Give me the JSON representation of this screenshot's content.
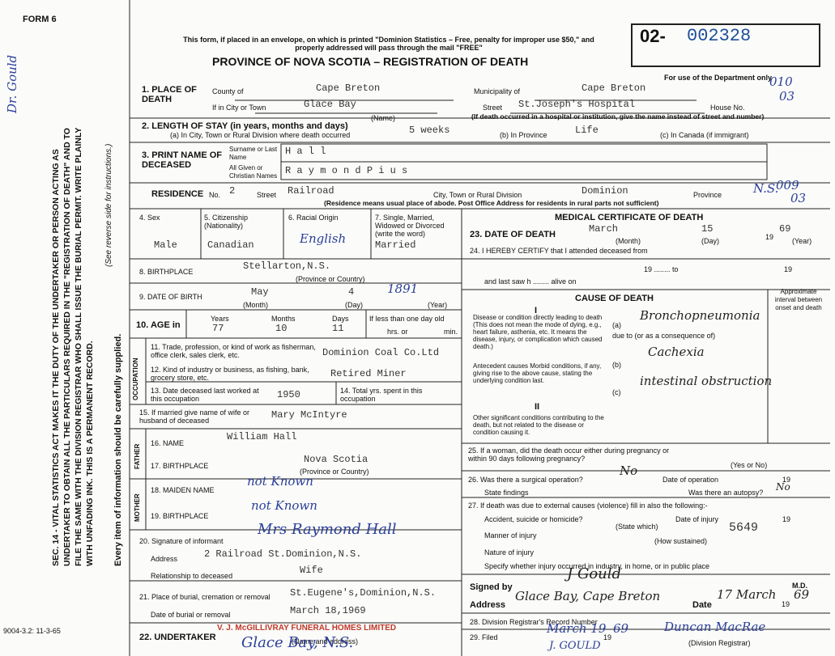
{
  "form_number": "FORM 6",
  "form_code": "9004-3.2: 11-3-65",
  "margin": {
    "handwritten_name": "Dr. Gould",
    "instructions": "SEC. 14 - VITAL STATISTICS ACT MAKES IT THE DUTY OF THE UNDERTAKER OR PERSON ACTING AS UNDERTAKER TO OBTAIN ALL THE PARTICULARS REQUIRED IN THE \"REGISTRATION OF DEATH\" AND TO FILE THE SAME WITH THE DIVISION REGISTRAR WHO SHALL ISSUE THE BURIAL PERMIT. WRITE PLAINLY WITH UNFADING INK. THIS IS A PERMANENT RECORD.",
    "reverse_note": "(See reverse side for instructions.)",
    "every_item": "Every item of information should be carefully supplied."
  },
  "header": {
    "notice": "This form, if placed in an envelope, on which is printed \"Dominion Statistics – Free, penalty for improper use $50,\" and properly addressed will pass through the mail \"FREE\"",
    "title": "PROVINCE OF NOVA SCOTIA – REGISTRATION OF DEATH",
    "registration_prefix": "02-",
    "registration_number": "002328",
    "department_note": "For use of the Department only",
    "department_codes": [
      "010",
      "03",
      "009",
      "03"
    ]
  },
  "place_of_death": {
    "label": "1. PLACE OF DEATH",
    "county_label": "County of",
    "county": "Cape Breton",
    "municipality_label": "Municipality of",
    "municipality": "Cape Breton",
    "city_label": "If in City or Town",
    "city": "Glace Bay",
    "street_label": "Street",
    "street": "St.Joseph's Hospital",
    "house_label": "House No.",
    "name_note": "(Name)",
    "hospital_note": "(If death occurred in a hospital or institution, give the name instead of street and number)"
  },
  "length_of_stay": {
    "label": "2. LENGTH OF STAY (in years, months and days)",
    "city_label": "(a) In City, Town or Rural Division where death occurred",
    "city": "5 weeks",
    "province_label": "(b) In Province",
    "province": "Life",
    "canada_label": "(c) In Canada (if immigrant)"
  },
  "name": {
    "label": "3. PRINT NAME OF DECEASED",
    "surname_label": "Surname or Last Name",
    "surname": "H a l l",
    "given_label": "All Given or Christian Names",
    "given": "R a y m o n d  P i u s"
  },
  "residence": {
    "label": "RESIDENCE",
    "no_label": "No.",
    "no": "2",
    "street_label": "Street",
    "street": "Railroad",
    "city_label": "City, Town or Rural Division",
    "city": "Dominion",
    "province_label": "Province",
    "province": "N.S.",
    "note": "(Residence means usual place of abode. Post Office Address for residents in rural parts not sufficient)"
  },
  "personal": {
    "sex_label": "4. Sex",
    "sex": "Male",
    "citizenship_label": "5. Citizenship (Nationality)",
    "citizenship": "Canadian",
    "racial_label": "6. Racial Origin",
    "racial": "English",
    "marital_label": "7. Single, Married, Widowed or Divorced (write the word)",
    "marital": "Married",
    "birthplace_label": "8. BIRTHPLACE",
    "birthplace": "Stellarton,N.S.",
    "birthplace_note": "(Province or Country)",
    "dob_label": "9. DATE OF BIRTH",
    "dob_month": "May",
    "dob_day": "4",
    "dob_year": "1891",
    "month_note": "(Month)",
    "day_note": "(Day)",
    "year_note": "(Year)",
    "age_label": "10. AGE in",
    "years_label": "Years",
    "years": "77",
    "months_label": "Months",
    "months": "10",
    "days_label": "Days",
    "days": "11",
    "less_day_label": "If less than one day old",
    "hrs_label": "hrs. or",
    "min_label": "min."
  },
  "occupation": {
    "side_label": "OCCUPATION",
    "trade_label": "11. Trade, profession, or kind of work as fisherman, office clerk, sales clerk, etc.",
    "trade": "Dominion Coal Co.Ltd",
    "industry_label": "12. Kind of industry or business, as fishing, bank, grocery store, etc.",
    "industry": "Retired Miner",
    "last_worked_label": "13. Date deceased last worked at this occupation",
    "last_worked": "1950",
    "total_label": "14. Total yrs. spent in this occupation"
  },
  "spouse": {
    "label": "15. If married give name of wife or husband of deceased",
    "name": "Mary McIntyre"
  },
  "father": {
    "side_label": "FATHER",
    "name_label": "16. NAME",
    "name": "William Hall",
    "birthplace_label": "17. BIRTHPLACE",
    "birthplace": "Nova Scotia",
    "birthplace_note": "(Province or Country)"
  },
  "mother": {
    "side_label": "MOTHER",
    "maiden_label": "18. MAIDEN NAME",
    "maiden": "not Known",
    "birthplace_label": "19. BIRTHPLACE",
    "birthplace": "not Known"
  },
  "informant": {
    "signature_label": "20. Signature of informant",
    "signature": "Mrs Raymond Hall",
    "address_label": "Address",
    "address": "2 Railroad St.Dominion,N.S.",
    "relationship_label": "Relationship to deceased",
    "relationship": "Wife"
  },
  "burial": {
    "place_label": "21. Place of burial, cremation or removal",
    "place": "St.Eugene's,Dominion,N.S.",
    "date_label": "Date of burial or removal",
    "date": "March 18,1969"
  },
  "undertaker": {
    "label": "22. UNDERTAKER",
    "stamp": "V. J. McGILLIVRAY FUNERAL HOMES LIMITED",
    "note": "(Name and address)",
    "address": "Glace Bay, N.S."
  },
  "medical": {
    "title": "MEDICAL CERTIFICATE OF DEATH",
    "death_label": "23. DATE OF DEATH",
    "death_month": "March",
    "death_day": "15",
    "death_century": "19",
    "death_year": "69",
    "month_note": "(Month)",
    "day_note": "(Day)",
    "year_note": "(Year)",
    "certify": "24. I HEREBY CERTIFY that I attended deceased from",
    "nineteen_to": "19 ........ to",
    "nineteen": "19",
    "last_saw": "and last saw h ........ alive on",
    "cause_title": "CAUSE OF DEATH",
    "interval": "Approximate interval between onset and death",
    "part_one": "I",
    "direct": "Disease or condition directly leading to death (This does not mean the mode of dying, e.g., heart failure, asthenia, etc. It means the disease, injury, or complication which caused death.)",
    "a": "(a)",
    "a_cause": "Bronchopneumonia",
    "due_to": "due to (or as a consequence of)",
    "antecedent": "Antecedent causes Morbid conditions, if any, giving rise to the above cause, stating the underlying condition last.",
    "b": "(b)",
    "b_cause": "Cachexia",
    "c": "(c)",
    "c_cause": "intestinal obstruction",
    "part_two": "II",
    "other": "Other significant conditions contributing to the death, but not related to the disease or condition causing it."
  },
  "pregnancy": {
    "label": "25. If a woman, did the death occur either during pregnancy or within 90 days following pregnancy?",
    "note": "(Yes or No)"
  },
  "operation": {
    "label": "26. Was there a surgical operation?",
    "answer": "No",
    "date_label": "Date of operation",
    "nineteen": "19",
    "findings_label": "State findings",
    "autopsy_label": "Was there an autopsy?",
    "autopsy": "No"
  },
  "external": {
    "label": "27. If death was due to external causes (violence) fill in also the following:-",
    "accident_label": "Accident, suicide or homicide?",
    "state_note": "(State which)",
    "injury_date_label": "Date of injury",
    "nineteen": "19",
    "manner_label": "Manner of injury",
    "sustained_note": "(How sustained)",
    "code": "5649",
    "nature_label": "Nature of injury",
    "where_label": "Specify whether injury occurred in industry, in home, or in public place"
  },
  "signature": {
    "signed_label": "Signed by",
    "signed": "J Gould",
    "address_label": "Address",
    "address": "Glace Bay, Cape Breton",
    "md": "M.D.",
    "date_label": "Date",
    "date": "17 March",
    "century": "19",
    "year": "69"
  },
  "registrar": {
    "record_label": "28. Division Registrar's Record Number",
    "filed_label": "29. Filed",
    "filed": "March 19",
    "century": "19",
    "year": "69",
    "registrar": "Duncan MacRae",
    "registrar_note": "(Division Registrar)",
    "stamp": "J. GOULD"
  }
}
